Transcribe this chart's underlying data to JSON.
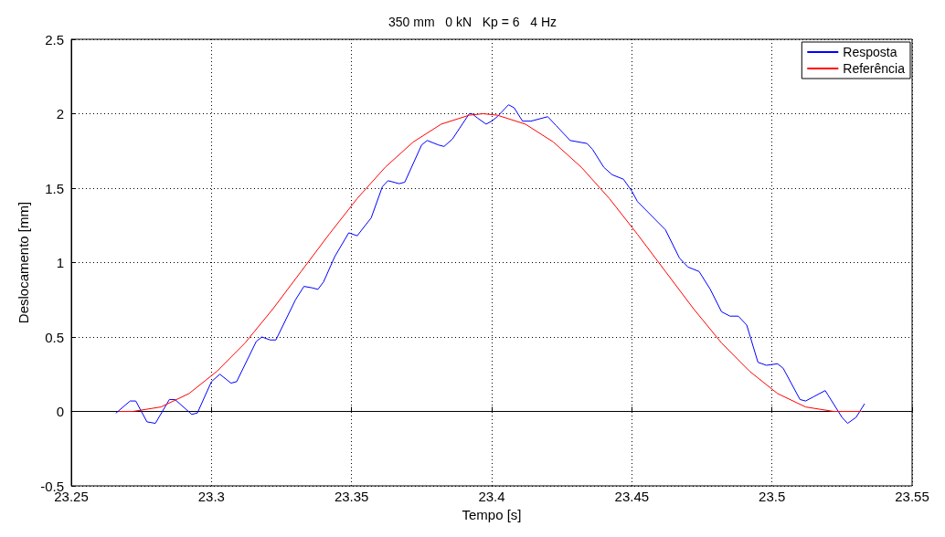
{
  "chart_data": {
    "type": "line",
    "title": "350 mm   0 kN   Kp = 6   4 Hz",
    "xlabel": "Tempo [s]",
    "ylabel": "Deslocamento [mm]",
    "xlim": [
      23.25,
      23.55
    ],
    "xticks": [
      23.25,
      23.3,
      23.35,
      23.4,
      23.45,
      23.5,
      23.55
    ],
    "ylim": [
      -0.5,
      2.5
    ],
    "yticks": [
      -0.5,
      0,
      0.5,
      1,
      1.5,
      2,
      2.5
    ],
    "grid": true,
    "legend": "top right",
    "marker": "none",
    "line_style": "solid",
    "series": [
      {
        "name": "Resposta",
        "color": "#0000ff",
        "x": [
          23.266,
          23.271,
          23.273,
          23.277,
          23.28,
          23.285,
          23.287,
          23.293,
          23.295,
          23.3,
          23.303,
          23.307,
          23.309,
          23.316,
          23.318,
          23.321,
          23.323,
          23.33,
          23.333,
          23.336,
          23.338,
          23.34,
          23.344,
          23.349,
          23.352,
          23.357,
          23.361,
          23.363,
          23.367,
          23.369,
          23.375,
          23.377,
          23.381,
          23.383,
          23.386,
          23.392,
          23.393,
          23.395,
          23.398,
          23.4,
          23.402,
          23.406,
          23.408,
          23.411,
          23.414,
          23.42,
          23.423,
          23.428,
          23.434,
          23.436,
          23.44,
          23.443,
          23.447,
          23.45,
          23.452,
          23.462,
          23.467,
          23.47,
          23.474,
          23.478,
          23.482,
          23.485,
          23.488,
          23.491,
          23.495,
          23.498,
          23.502,
          23.504,
          23.51,
          23.512,
          23.515,
          23.519,
          23.52,
          23.525,
          23.527,
          23.53,
          23.533
        ],
        "values": [
          -0.01,
          0.07,
          0.07,
          -0.07,
          -0.08,
          0.08,
          0.08,
          -0.02,
          -0.01,
          0.2,
          0.25,
          0.19,
          0.2,
          0.47,
          0.5,
          0.48,
          0.48,
          0.75,
          0.84,
          0.83,
          0.82,
          0.87,
          1.04,
          1.2,
          1.18,
          1.3,
          1.51,
          1.55,
          1.53,
          1.54,
          1.79,
          1.82,
          1.79,
          1.78,
          1.83,
          2.0,
          2.0,
          1.97,
          1.93,
          1.95,
          1.98,
          2.06,
          2.04,
          1.95,
          1.95,
          1.98,
          1.92,
          1.82,
          1.8,
          1.76,
          1.64,
          1.59,
          1.56,
          1.48,
          1.41,
          1.22,
          1.03,
          0.97,
          0.94,
          0.82,
          0.67,
          0.64,
          0.64,
          0.58,
          0.33,
          0.31,
          0.32,
          0.29,
          0.08,
          0.07,
          0.1,
          0.14,
          0.11,
          -0.04,
          -0.08,
          -0.04,
          0.05
        ]
      },
      {
        "name": "Referência",
        "color": "#ff0000",
        "x": [
          23.267,
          23.272,
          23.282,
          23.292,
          23.302,
          23.312,
          23.322,
          23.332,
          23.342,
          23.352,
          23.362,
          23.372,
          23.382,
          23.392,
          23.397,
          23.402,
          23.412,
          23.422,
          23.432,
          23.442,
          23.452,
          23.462,
          23.472,
          23.482,
          23.492,
          23.502,
          23.512,
          23.522,
          23.532
        ],
        "values": [
          0,
          0,
          0.03,
          0.12,
          0.27,
          0.46,
          0.69,
          0.94,
          1.19,
          1.43,
          1.64,
          1.81,
          1.93,
          1.99,
          2.0,
          1.99,
          1.93,
          1.81,
          1.64,
          1.43,
          1.19,
          0.94,
          0.69,
          0.46,
          0.27,
          0.12,
          0.03,
          0,
          0
        ]
      }
    ]
  }
}
